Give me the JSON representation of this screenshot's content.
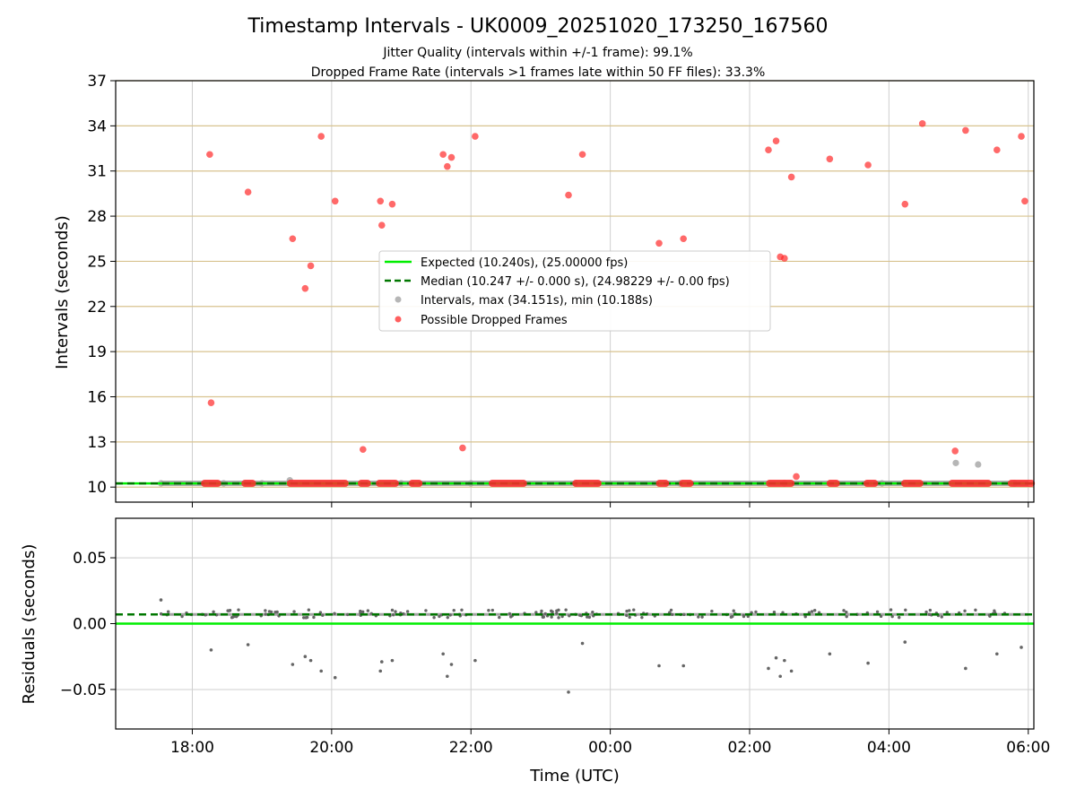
{
  "title": "Timestamp Intervals - UK0009_20251020_173250_167560",
  "subtitle_1": "Jitter Quality (intervals within +/-1 frame): 99.1%",
  "subtitle_2": "Dropped Frame Rate (intervals >1 frames late within 50 FF files): 33.3%",
  "colors": {
    "expected": "#00ee00",
    "median": "#007700",
    "intervals": "#9e9e9e",
    "dropped": "#ff2a2a",
    "residual_points": "#666666",
    "hgrid_top": "#d8c38f",
    "grid": "#cfcfcf"
  },
  "chart_data": [
    {
      "type": "scatter",
      "panel": "top",
      "ylabel": "Intervals (seconds)",
      "xlim": [
        -7.1,
        6.08
      ],
      "ylim": [
        9.0,
        37.0
      ],
      "yticks": [
        10,
        13,
        16,
        19,
        22,
        25,
        28,
        31,
        34,
        37
      ],
      "x_grid_hours": [
        -6,
        -4,
        -2,
        0,
        2,
        4,
        6
      ],
      "legend": {
        "position": "center",
        "entries": [
          "Expected (10.240s), (25.00000 fps)",
          "Median (10.247 +/- 0.000 s), (24.98229 +/- 0.00 fps)",
          "Intervals, max (34.151s), min (10.188s)",
          "Possible Dropped Frames"
        ]
      },
      "expected_y": 10.24,
      "median_y": 10.247,
      "interval_base_range_hours": [
        -6.45,
        6.0
      ],
      "intervals_gray": [
        [
          -6.45,
          10.25
        ],
        [
          -5.55,
          10.25
        ],
        [
          -5.0,
          10.25
        ],
        [
          -4.6,
          10.45
        ],
        [
          -3.0,
          10.25
        ],
        [
          -2.0,
          10.25
        ],
        [
          -0.5,
          10.25
        ],
        [
          1.0,
          10.25
        ],
        [
          2.5,
          10.25
        ],
        [
          3.9,
          10.25
        ],
        [
          4.96,
          11.6
        ],
        [
          5.28,
          11.5
        ],
        [
          5.8,
          10.25
        ]
      ],
      "dropped_bands_hours": [
        [
          -5.83,
          -5.63
        ],
        [
          -5.25,
          -5.13
        ],
        [
          -4.6,
          -3.8
        ],
        [
          -3.58,
          -3.48
        ],
        [
          -3.32,
          -3.08
        ],
        [
          -2.85,
          -2.74
        ],
        [
          -1.7,
          -1.24
        ],
        [
          -0.5,
          -0.17
        ],
        [
          0.7,
          0.8
        ],
        [
          1.03,
          1.15
        ],
        [
          2.28,
          2.6
        ],
        [
          3.15,
          3.25
        ],
        [
          3.68,
          3.8
        ],
        [
          4.22,
          4.45
        ],
        [
          4.9,
          5.43
        ],
        [
          5.75,
          6.05
        ]
      ],
      "dropped_points": [
        [
          -5.75,
          32.1
        ],
        [
          -5.73,
          15.6
        ],
        [
          -5.2,
          29.6
        ],
        [
          -4.56,
          26.5
        ],
        [
          -4.38,
          23.2
        ],
        [
          -4.3,
          24.7
        ],
        [
          -4.15,
          33.3
        ],
        [
          -3.95,
          29.0
        ],
        [
          -3.55,
          12.5
        ],
        [
          -3.3,
          29.0
        ],
        [
          -3.28,
          27.4
        ],
        [
          -3.13,
          28.8
        ],
        [
          -2.4,
          32.1
        ],
        [
          -2.34,
          31.3
        ],
        [
          -2.28,
          31.9
        ],
        [
          -2.12,
          12.6
        ],
        [
          -1.94,
          33.3
        ],
        [
          -0.6,
          29.4
        ],
        [
          -0.4,
          32.1
        ],
        [
          0.7,
          26.2
        ],
        [
          1.05,
          26.5
        ],
        [
          2.27,
          32.4
        ],
        [
          2.38,
          33.0
        ],
        [
          2.44,
          25.3
        ],
        [
          2.5,
          25.2
        ],
        [
          2.6,
          30.6
        ],
        [
          2.67,
          10.7
        ],
        [
          3.15,
          31.8
        ],
        [
          3.7,
          31.4
        ],
        [
          4.23,
          28.8
        ],
        [
          4.48,
          34.15
        ],
        [
          4.95,
          12.4
        ],
        [
          5.1,
          33.7
        ],
        [
          5.55,
          32.4
        ],
        [
          5.9,
          33.3
        ],
        [
          5.95,
          29.0
        ]
      ]
    },
    {
      "type": "scatter",
      "panel": "bottom",
      "xlabel": "Time (UTC)",
      "ylabel": "Residuals (seconds)",
      "xlim": [
        -7.1,
        6.08
      ],
      "ylim": [
        -0.08,
        0.08
      ],
      "yticks": [
        0.05,
        0.0,
        -0.05
      ],
      "ytick_labels": [
        "0.05",
        "0.00",
        "−0.05"
      ],
      "x_ticks_hours": [
        -6,
        -4,
        -2,
        0,
        2,
        4,
        6
      ],
      "x_tick_labels": [
        "18:00",
        "20:00",
        "22:00",
        "00:00",
        "02:00",
        "04:00",
        "06:00"
      ],
      "expected_y": 0.0,
      "median_y": 0.007,
      "residual_outliers": [
        [
          -6.45,
          0.018
        ],
        [
          -5.73,
          -0.02
        ],
        [
          -5.2,
          -0.016
        ],
        [
          -4.56,
          -0.031
        ],
        [
          -4.38,
          -0.025
        ],
        [
          -4.3,
          -0.028
        ],
        [
          -4.15,
          -0.036
        ],
        [
          -3.95,
          -0.041
        ],
        [
          -3.3,
          -0.036
        ],
        [
          -3.28,
          -0.029
        ],
        [
          -3.13,
          -0.028
        ],
        [
          -2.4,
          -0.023
        ],
        [
          -2.34,
          -0.04
        ],
        [
          -2.28,
          -0.031
        ],
        [
          -1.94,
          -0.028
        ],
        [
          -0.6,
          -0.052
        ],
        [
          -0.4,
          -0.015
        ],
        [
          0.7,
          -0.032
        ],
        [
          1.05,
          -0.032
        ],
        [
          2.27,
          -0.034
        ],
        [
          2.38,
          -0.026
        ],
        [
          2.44,
          -0.04
        ],
        [
          2.5,
          -0.028
        ],
        [
          2.6,
          -0.036
        ],
        [
          3.15,
          -0.023
        ],
        [
          3.7,
          -0.03
        ],
        [
          4.23,
          -0.014
        ],
        [
          5.1,
          -0.034
        ],
        [
          5.55,
          -0.023
        ],
        [
          5.9,
          -0.018
        ]
      ]
    }
  ]
}
